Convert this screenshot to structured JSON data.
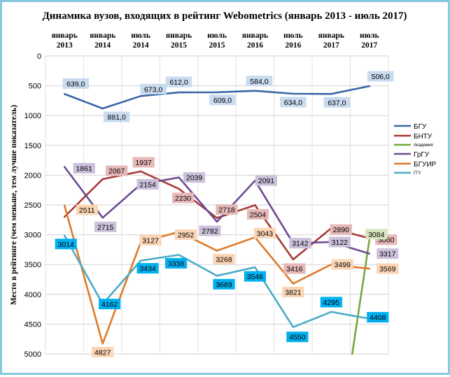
{
  "chart_data": {
    "type": "line",
    "title": "Динамика вузов, входящих в рейтинг Webometrics (январь 2013 - июль 2017)",
    "ylabel": "Место в рейтинге (чем меньше, тем лучше показатель)",
    "xlabel": "",
    "categories": [
      [
        "январь",
        "2013"
      ],
      [
        "январь",
        "2014"
      ],
      [
        "июль",
        "2014"
      ],
      [
        "январь",
        "2015"
      ],
      [
        "июль",
        "2015"
      ],
      [
        "январь",
        "2016"
      ],
      [
        "июль",
        "2016"
      ],
      [
        "январь",
        "2017"
      ],
      [
        "июль",
        "2017"
      ]
    ],
    "yticks": [
      0,
      500,
      1000,
      1500,
      2000,
      2500,
      3000,
      3500,
      4000,
      4500,
      5000
    ],
    "ylim": [
      0,
      5000
    ],
    "y_reversed": true,
    "grid": true,
    "legend_position": "right",
    "series": [
      {
        "name": "БГУ",
        "color": "#3a66a7",
        "points": [
          [
            0,
            639
          ],
          [
            1,
            881
          ],
          [
            2,
            673
          ],
          [
            3,
            612
          ],
          [
            4,
            609
          ],
          [
            5,
            584
          ],
          [
            6,
            634
          ],
          [
            7,
            637
          ],
          [
            8,
            506
          ]
        ],
        "labels": [
          {
            "i": 0,
            "text": "639,0"
          },
          {
            "i": 1,
            "text": "881,0"
          },
          {
            "i": 2,
            "text": "673,0"
          },
          {
            "i": 3,
            "text": "612,0"
          },
          {
            "i": 4,
            "text": "609,0"
          },
          {
            "i": 5,
            "text": "584,0"
          },
          {
            "i": 6,
            "text": "634,0"
          },
          {
            "i": 7,
            "text": "637,0"
          },
          {
            "i": 8,
            "text": "506,0"
          }
        ]
      },
      {
        "name": "БНТУ",
        "color": "#a53b36",
        "points": [
          [
            0,
            2700
          ],
          [
            1,
            2067
          ],
          [
            2,
            1937
          ],
          [
            3,
            2230
          ],
          [
            4,
            2718
          ],
          [
            5,
            2504
          ],
          [
            6,
            3416
          ],
          [
            7,
            2890
          ],
          [
            8,
            3060
          ]
        ],
        "labels": [
          {
            "i": 1,
            "text": "2067"
          },
          {
            "i": 2,
            "text": "1937"
          },
          {
            "i": 3,
            "text": "2230"
          },
          {
            "i": 4,
            "text": "2718"
          },
          {
            "i": 5,
            "text": "2504"
          },
          {
            "i": 6,
            "text": "3416"
          },
          {
            "i": 7,
            "text": "2890"
          },
          {
            "i": 8,
            "text": "3060"
          }
        ]
      },
      {
        "name": "Академия",
        "color": "#78a83d",
        "points": [
          [
            7.55,
            5000
          ],
          [
            8,
            3084
          ]
        ],
        "labels": [
          {
            "i": 1,
            "text": "3084"
          }
        ]
      },
      {
        "name": "ГрГУ",
        "color": "#6c4a94",
        "points": [
          [
            0,
            1861
          ],
          [
            1,
            2715
          ],
          [
            2,
            2154
          ],
          [
            3,
            2039
          ],
          [
            4,
            2782
          ],
          [
            5,
            2091
          ],
          [
            6,
            3142
          ],
          [
            7,
            3122
          ],
          [
            8,
            3317
          ]
        ],
        "labels": [
          {
            "i": 0,
            "text": "1861"
          },
          {
            "i": 1,
            "text": "2715"
          },
          {
            "i": 2,
            "text": "2154"
          },
          {
            "i": 3,
            "text": "2039"
          },
          {
            "i": 4,
            "text": "2782"
          },
          {
            "i": 5,
            "text": "2091"
          },
          {
            "i": 6,
            "text": "3142"
          },
          {
            "i": 7,
            "text": "3122"
          },
          {
            "i": 8,
            "text": "3317"
          }
        ]
      },
      {
        "name": "БГУИР",
        "color": "#e07a28",
        "points": [
          [
            0,
            2511
          ],
          [
            1,
            4827
          ],
          [
            2,
            3127
          ],
          [
            3,
            2952
          ],
          [
            4,
            3268
          ],
          [
            5,
            3043
          ],
          [
            6,
            3821
          ],
          [
            7,
            3499
          ],
          [
            8,
            3569
          ]
        ],
        "labels": [
          {
            "i": 0,
            "text": "2511"
          },
          {
            "i": 1,
            "text": "4827"
          },
          {
            "i": 2,
            "text": "3127"
          },
          {
            "i": 3,
            "text": "2952"
          },
          {
            "i": 4,
            "text": "3268"
          },
          {
            "i": 5,
            "text": "3043"
          },
          {
            "i": 6,
            "text": "3821"
          },
          {
            "i": 7,
            "text": "3499"
          },
          {
            "i": 8,
            "text": "3569"
          }
        ]
      },
      {
        "name": "ГГУ",
        "color": "#4bacc6",
        "points": [
          [
            0,
            3014
          ],
          [
            1,
            4162
          ],
          [
            2,
            3434
          ],
          [
            3,
            3338
          ],
          [
            4,
            3689
          ],
          [
            5,
            3546
          ],
          [
            6,
            4550
          ],
          [
            7,
            4295
          ],
          [
            8,
            4408
          ]
        ],
        "labels": [
          {
            "i": 0,
            "text": "3014"
          },
          {
            "i": 1,
            "text": "4162"
          },
          {
            "i": 2,
            "text": "3434"
          },
          {
            "i": 3,
            "text": "3338"
          },
          {
            "i": 4,
            "text": "3689"
          },
          {
            "i": 5,
            "text": "3546"
          },
          {
            "i": 6,
            "text": "4550"
          },
          {
            "i": 7,
            "text": "4295"
          },
          {
            "i": 8,
            "text": "4408"
          }
        ]
      }
    ]
  },
  "label_styles": {
    "БГУ": {
      "bg": "#c9dbef",
      "fg": "#000000"
    },
    "БНТУ": {
      "bg": "#e6b9b8",
      "fg": "#000000"
    },
    "Академия": {
      "bg": "#d7e4bd",
      "fg": "#000000"
    },
    "ГрГУ": {
      "bg": "#ccc1da",
      "fg": "#000000"
    },
    "БГУИР": {
      "bg": "#fbd5b5",
      "fg": "#000000"
    },
    "ГГУ": {
      "bg": "#00b0f0",
      "fg": "#000000"
    }
  }
}
